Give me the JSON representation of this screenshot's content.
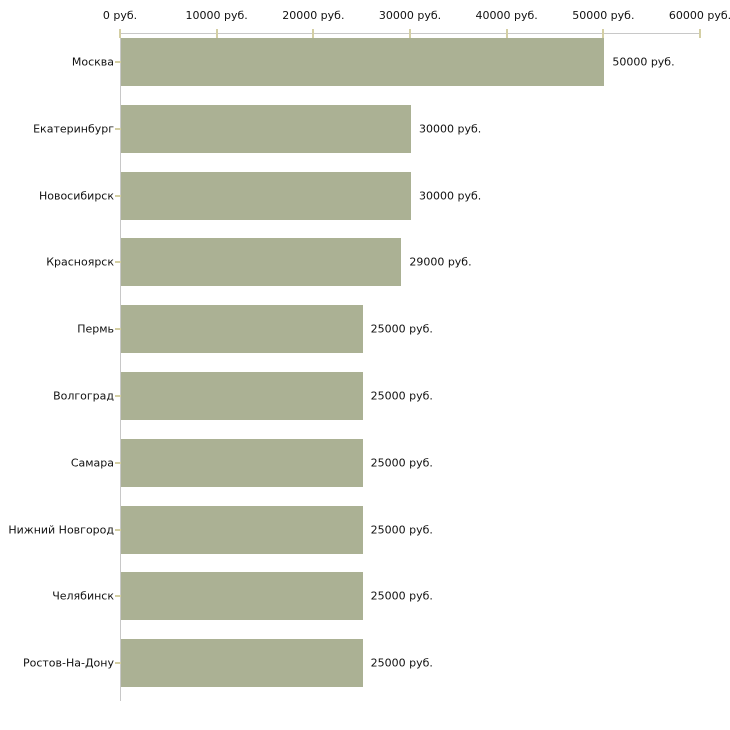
{
  "chart_data": {
    "type": "bar",
    "orientation": "horizontal",
    "title": "",
    "xlabel": "",
    "ylabel": "",
    "unit": "руб.",
    "categories": [
      "Москва",
      "Екатеринбург",
      "Новосибирск",
      "Красноярск",
      "Пермь",
      "Волгоград",
      "Самара",
      "Нижний Новгород",
      "Челябинск",
      "Ростов-На-Дону"
    ],
    "values": [
      50000,
      30000,
      30000,
      29000,
      25000,
      25000,
      25000,
      25000,
      25000,
      25000
    ],
    "value_labels": [
      "50000 руб.",
      "30000 руб.",
      "30000 руб.",
      "29000 руб.",
      "25000 руб.",
      "25000 руб.",
      "25000 руб.",
      "25000 руб.",
      "25000 руб.",
      "25000 руб."
    ],
    "x_axis": {
      "position": "top",
      "min": 0,
      "max": 60000,
      "ticks": [
        0,
        10000,
        20000,
        30000,
        40000,
        50000,
        60000
      ],
      "tick_labels": [
        "0 руб.",
        "10000 руб.",
        "20000 руб.",
        "30000 руб.",
        "40000 руб.",
        "50000 руб.",
        "60000 руб."
      ]
    },
    "grid": false,
    "legend": null,
    "colors": {
      "bar": "#abb194",
      "axis_line": "#c8c8c8",
      "tick_mark": "#d4cfa4",
      "text": "#111111",
      "background": "#ffffff"
    }
  }
}
